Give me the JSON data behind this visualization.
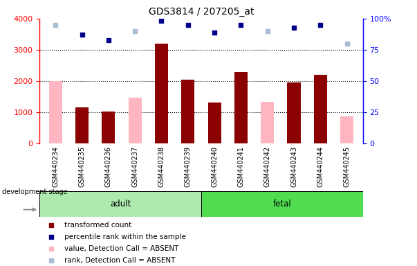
{
  "title": "GDS3814 / 207205_at",
  "categories": [
    "GSM440234",
    "GSM440235",
    "GSM440236",
    "GSM440237",
    "GSM440238",
    "GSM440239",
    "GSM440240",
    "GSM440241",
    "GSM440242",
    "GSM440243",
    "GSM440244",
    "GSM440245"
  ],
  "adult_count": 6,
  "fetal_count": 6,
  "dark_red_bars": [
    null,
    1150,
    1020,
    null,
    3200,
    2050,
    1310,
    2280,
    null,
    1960,
    2200,
    null
  ],
  "pink_bars": [
    2000,
    null,
    null,
    1480,
    null,
    null,
    null,
    null,
    1340,
    null,
    null,
    880
  ],
  "blue_dots": [
    null,
    87,
    83,
    null,
    98,
    95,
    89,
    95,
    null,
    93,
    95,
    null
  ],
  "lightblue_dots": [
    95,
    null,
    null,
    90,
    null,
    null,
    null,
    null,
    90,
    null,
    null,
    80
  ],
  "ylim_left": [
    0,
    4000
  ],
  "ylim_right": [
    0,
    100
  ],
  "yticks_left": [
    0,
    1000,
    2000,
    3000,
    4000
  ],
  "ytick_labels_left": [
    "0",
    "1000",
    "2000",
    "3000",
    "4000"
  ],
  "yticks_right": [
    0,
    25,
    50,
    75,
    100
  ],
  "ytick_labels_right": [
    "0",
    "25",
    "50",
    "75",
    "100%"
  ],
  "dark_red_color": "#8B0000",
  "pink_color": "#FFB6C1",
  "blue_color": "#00008B",
  "lightblue_color": "#AABBD4",
  "adult_green_light": "#AEEAAE",
  "fetal_green_bright": "#50DD50",
  "gray_bg": "#D3D3D3",
  "bar_width": 0.5,
  "legend_items": [
    {
      "label": "transformed count",
      "color": "#8B0000"
    },
    {
      "label": "percentile rank within the sample",
      "color": "#00008B"
    },
    {
      "label": "value, Detection Call = ABSENT",
      "color": "#FFB6C1"
    },
    {
      "label": "rank, Detection Call = ABSENT",
      "color": "#AABBD4"
    }
  ]
}
